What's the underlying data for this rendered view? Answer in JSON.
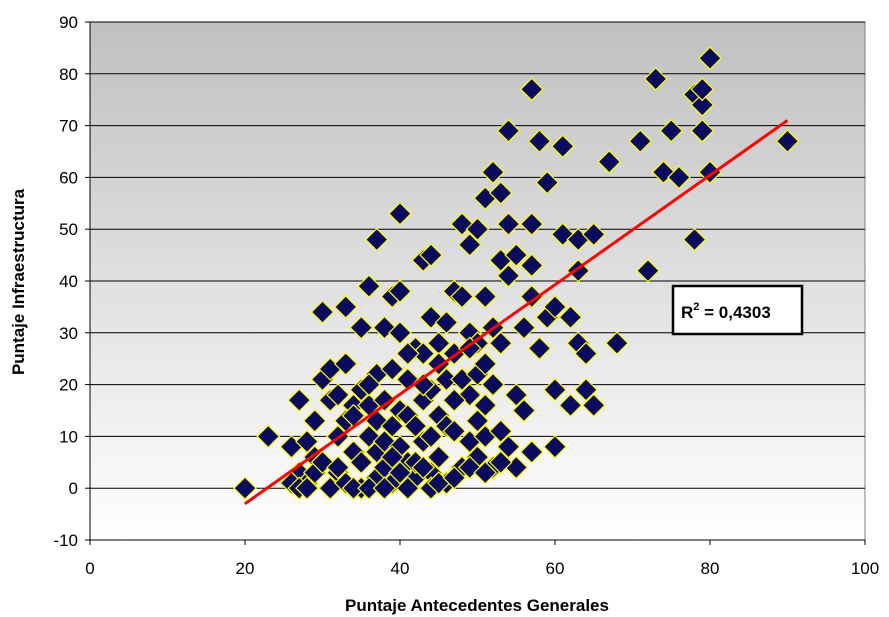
{
  "chart_data": {
    "type": "scatter",
    "title": "",
    "xlabel": "Puntaje Antecedentes Generales",
    "ylabel": "Puntaje Infraestructura",
    "xlim": [
      0,
      100
    ],
    "ylim": [
      -10,
      90
    ],
    "x_ticks": [
      "0",
      "20",
      "40",
      "60",
      "80",
      "100"
    ],
    "y_ticks": [
      "-10",
      "0",
      "10",
      "20",
      "30",
      "40",
      "50",
      "60",
      "70",
      "80",
      "90"
    ],
    "grid": "horizontal",
    "marker": "diamond",
    "colors": {
      "marker_fill": "#0a0a5e",
      "marker_edge": "#ffff00",
      "trendline": "#ff0000",
      "plot_top": "#c0c0c0",
      "plot_bottom": "#ffffff"
    },
    "trendline": {
      "x": [
        20,
        90
      ],
      "y": [
        -3,
        71
      ]
    },
    "r2_label": {
      "prefix": "R",
      "sup": "2",
      "suffix": " = 0,4303"
    },
    "points": [
      [
        20,
        0
      ],
      [
        23,
        10
      ],
      [
        26,
        8
      ],
      [
        27,
        17
      ],
      [
        27,
        3
      ],
      [
        28,
        9
      ],
      [
        28,
        1
      ],
      [
        29,
        13
      ],
      [
        29,
        6
      ],
      [
        30,
        21
      ],
      [
        30,
        34
      ],
      [
        31,
        17
      ],
      [
        31,
        23
      ],
      [
        32,
        10
      ],
      [
        32,
        3
      ],
      [
        33,
        24
      ],
      [
        33,
        35
      ],
      [
        33,
        13
      ],
      [
        34,
        16
      ],
      [
        34,
        7
      ],
      [
        35,
        31
      ],
      [
        35,
        19
      ],
      [
        35,
        5
      ],
      [
        35,
        0
      ],
      [
        36,
        39
      ],
      [
        36,
        16
      ],
      [
        36,
        10
      ],
      [
        37,
        48
      ],
      [
        37,
        22
      ],
      [
        37,
        13
      ],
      [
        37,
        7
      ],
      [
        37,
        2
      ],
      [
        38,
        31
      ],
      [
        38,
        17
      ],
      [
        38,
        9
      ],
      [
        38,
        4
      ],
      [
        39,
        37
      ],
      [
        39,
        12
      ],
      [
        39,
        1
      ],
      [
        40,
        53
      ],
      [
        40,
        38
      ],
      [
        40,
        30
      ],
      [
        40,
        15
      ],
      [
        40,
        8
      ],
      [
        41,
        21
      ],
      [
        41,
        14
      ],
      [
        41,
        5
      ],
      [
        42,
        27
      ],
      [
        42,
        12
      ],
      [
        42,
        2
      ],
      [
        43,
        44
      ],
      [
        43,
        26
      ],
      [
        43,
        17
      ],
      [
        43,
        9
      ],
      [
        44,
        45
      ],
      [
        44,
        33
      ],
      [
        44,
        19
      ],
      [
        44,
        10
      ],
      [
        44,
        3
      ],
      [
        45,
        28
      ],
      [
        45,
        14
      ],
      [
        45,
        6
      ],
      [
        46,
        32
      ],
      [
        46,
        21
      ],
      [
        46,
        12
      ],
      [
        46,
        1
      ],
      [
        47,
        38
      ],
      [
        47,
        26
      ],
      [
        47,
        11
      ],
      [
        48,
        51
      ],
      [
        48,
        37
      ],
      [
        48,
        21
      ],
      [
        48,
        4
      ],
      [
        49,
        47
      ],
      [
        49,
        30
      ],
      [
        49,
        18
      ],
      [
        49,
        9
      ],
      [
        50,
        50
      ],
      [
        50,
        28
      ],
      [
        50,
        22
      ],
      [
        50,
        13
      ],
      [
        50,
        6
      ],
      [
        51,
        56
      ],
      [
        51,
        37
      ],
      [
        51,
        16
      ],
      [
        51,
        10
      ],
      [
        52,
        61
      ],
      [
        52,
        31
      ],
      [
        52,
        20
      ],
      [
        52,
        4
      ],
      [
        53,
        57
      ],
      [
        53,
        44
      ],
      [
        53,
        28
      ],
      [
        53,
        11
      ],
      [
        54,
        69
      ],
      [
        54,
        51
      ],
      [
        54,
        41
      ],
      [
        54,
        8
      ],
      [
        55,
        45
      ],
      [
        55,
        18
      ],
      [
        55,
        4
      ],
      [
        56,
        31
      ],
      [
        56,
        15
      ],
      [
        57,
        77
      ],
      [
        57,
        51
      ],
      [
        57,
        43
      ],
      [
        57,
        37
      ],
      [
        57,
        7
      ],
      [
        58,
        67
      ],
      [
        58,
        27
      ],
      [
        59,
        59
      ],
      [
        59,
        33
      ],
      [
        60,
        35
      ],
      [
        60,
        19
      ],
      [
        60,
        8
      ],
      [
        61,
        66
      ],
      [
        61,
        49
      ],
      [
        62,
        33
      ],
      [
        62,
        16
      ],
      [
        63,
        48
      ],
      [
        63,
        42
      ],
      [
        63,
        28
      ],
      [
        64,
        26
      ],
      [
        64,
        19
      ],
      [
        65,
        49
      ],
      [
        65,
        16
      ],
      [
        67,
        63
      ],
      [
        68,
        28
      ],
      [
        71,
        67
      ],
      [
        72,
        42
      ],
      [
        73,
        79
      ],
      [
        74,
        61
      ],
      [
        75,
        69
      ],
      [
        76,
        60
      ],
      [
        78,
        48
      ],
      [
        78,
        76
      ],
      [
        79,
        69
      ],
      [
        79,
        74
      ],
      [
        79,
        77
      ],
      [
        80,
        83
      ],
      [
        80,
        61
      ],
      [
        90,
        67
      ],
      [
        26,
        1
      ],
      [
        27,
        0
      ],
      [
        28,
        0
      ],
      [
        29,
        3
      ],
      [
        30,
        5
      ],
      [
        31,
        0
      ],
      [
        32,
        4
      ],
      [
        33,
        1
      ],
      [
        34,
        0
      ],
      [
        36,
        0
      ],
      [
        38,
        0
      ],
      [
        39,
        6
      ],
      [
        40,
        3
      ],
      [
        41,
        0
      ],
      [
        42,
        5
      ],
      [
        43,
        4
      ],
      [
        44,
        0
      ],
      [
        45,
        1
      ],
      [
        47,
        2
      ],
      [
        49,
        4
      ],
      [
        51,
        3
      ],
      [
        53,
        5
      ],
      [
        32,
        18
      ],
      [
        34,
        14
      ],
      [
        36,
        20
      ],
      [
        39,
        23
      ],
      [
        41,
        26
      ],
      [
        43,
        20
      ],
      [
        45,
        24
      ],
      [
        47,
        17
      ],
      [
        49,
        27
      ],
      [
        51,
        24
      ]
    ]
  }
}
